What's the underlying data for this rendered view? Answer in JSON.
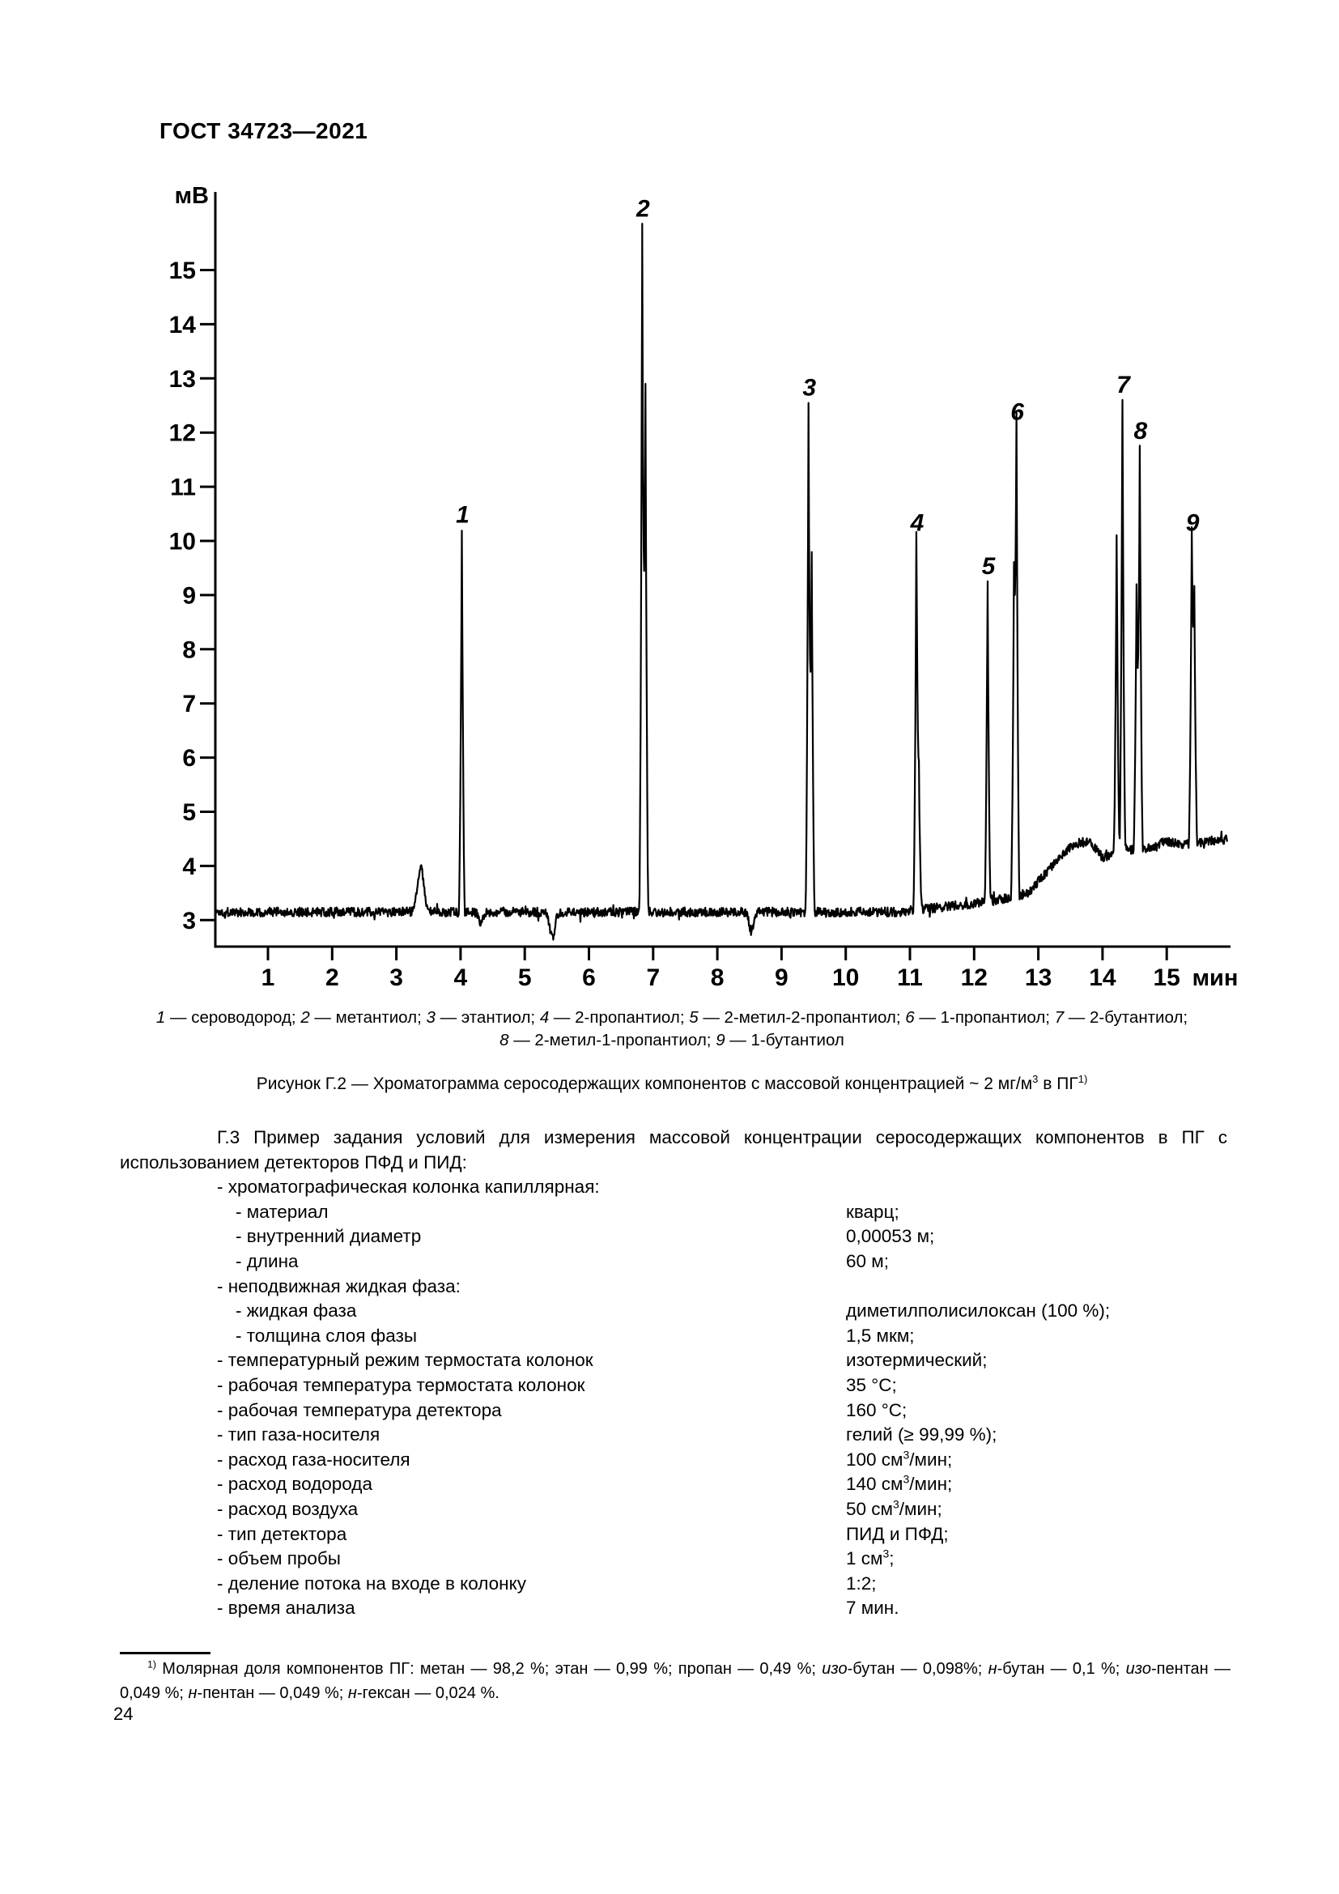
{
  "doc": {
    "header": "ГОСТ 34723—2021",
    "page_number": "24"
  },
  "figure_caption": {
    "line1_items": [
      {
        "num": "1",
        "name": "сероводород"
      },
      {
        "num": "2",
        "name": "метантиол"
      },
      {
        "num": "3",
        "name": "этантиол"
      },
      {
        "num": "4",
        "name": "2-пропантиол"
      },
      {
        "num": "5",
        "name": "2-метил-2-пропантиол"
      },
      {
        "num": "6",
        "name": "1-пропантиол"
      },
      {
        "num": "7",
        "name": "2-бутантиол"
      }
    ],
    "line2_items": [
      {
        "num": "8",
        "name": "2-метил-1-пропантиол"
      },
      {
        "num": "9",
        "name": "1-бутантиол"
      }
    ],
    "title_segments": [
      {
        "t": "Рисунок Г.2 — Хроматограмма серосодержащих компонентов с массовой концентрацией ~ 2 мг/м"
      },
      {
        "t": "3",
        "sup": true
      },
      {
        "t": " в ПГ"
      },
      {
        "t": "1)",
        "sup": true
      }
    ]
  },
  "conditions": {
    "intro": "Г.3 Пример задания условий для измерения массовой концентрации серосодержащих компонентов в ПГ с использованием детекторов ПФД и ПИД:",
    "items": [
      {
        "level": 1,
        "label": "- хроматографическая колонка капиллярная:",
        "value": []
      },
      {
        "level": 2,
        "label": "- материал",
        "value": [
          {
            "t": "кварц;"
          }
        ]
      },
      {
        "level": 2,
        "label": "- внутренний диаметр",
        "value": [
          {
            "t": "0,00053 м;"
          }
        ]
      },
      {
        "level": 2,
        "label": "- длина",
        "value": [
          {
            "t": "60 м;"
          }
        ]
      },
      {
        "level": 1,
        "label": "- неподвижная жидкая фаза:",
        "value": []
      },
      {
        "level": 2,
        "label": "- жидкая фаза",
        "value": [
          {
            "t": "диметилполисилоксан (100 %);"
          }
        ]
      },
      {
        "level": 2,
        "label": "- толщина слоя фазы",
        "value": [
          {
            "t": "1,5 мкм;"
          }
        ]
      },
      {
        "level": 1,
        "label": "- температурный режим термостата колонок",
        "value": [
          {
            "t": "изотермический;"
          }
        ]
      },
      {
        "level": 1,
        "label": "- рабочая температура термостата колонок",
        "value": [
          {
            "t": "35 °С;"
          }
        ]
      },
      {
        "level": 1,
        "label": "- рабочая температура детектора",
        "value": [
          {
            "t": "160 °С;"
          }
        ]
      },
      {
        "level": 1,
        "label": "- тип газа-носителя",
        "value": [
          {
            "t": "гелий (≥ 99,99 %);"
          }
        ]
      },
      {
        "level": 1,
        "label": "- расход газа-носителя",
        "value": [
          {
            "t": "100 см"
          },
          {
            "t": "3",
            "sup": true
          },
          {
            "t": "/мин;"
          }
        ]
      },
      {
        "level": 1,
        "label": "- расход водорода",
        "value": [
          {
            "t": "140 см"
          },
          {
            "t": "3",
            "sup": true
          },
          {
            "t": "/мин;"
          }
        ]
      },
      {
        "level": 1,
        "label": "- расход воздуха",
        "value": [
          {
            "t": "50 см"
          },
          {
            "t": "3",
            "sup": true
          },
          {
            "t": "/мин;"
          }
        ]
      },
      {
        "level": 1,
        "label": "- тип детектора",
        "value": [
          {
            "t": "ПИД и ПФД;"
          }
        ]
      },
      {
        "level": 1,
        "label": "- объем пробы",
        "value": [
          {
            "t": "1 см"
          },
          {
            "t": "3",
            "sup": true
          },
          {
            "t": ";"
          }
        ]
      },
      {
        "level": 1,
        "label": "- деление потока на входе в колонку",
        "value": [
          {
            "t": "1:2;"
          }
        ]
      },
      {
        "level": 1,
        "label": "- время анализа",
        "value": [
          {
            "t": "7 мин."
          }
        ]
      }
    ]
  },
  "footnote": {
    "segments": [
      {
        "t": "1)",
        "sup": true
      },
      {
        "t": " Молярная доля компонентов ПГ: метан — 98,2 %; этан — 0,99 %; пропан — 0,49 %; "
      },
      {
        "t": "изо",
        "i": true
      },
      {
        "t": "-бутан — 0,098%; "
      },
      {
        "t": "н",
        "i": true
      },
      {
        "t": "-бутан — 0,1 %; "
      },
      {
        "t": "изо",
        "i": true
      },
      {
        "t": "-пентан — 0,049 %; "
      },
      {
        "t": "н",
        "i": true
      },
      {
        "t": "-пентан — 0,049 %; "
      },
      {
        "t": "н",
        "i": true
      },
      {
        "t": "-гексан — 0,024 %."
      }
    ]
  },
  "chart_data": {
    "type": "line",
    "title": "Хроматограмма серосодержащих компонентов",
    "y_axis": {
      "unit": "мВ",
      "min": 3,
      "max": 15,
      "step": 1
    },
    "x_axis": {
      "unit": "мин",
      "min": 1,
      "max": 15,
      "step": 1
    },
    "grid": false,
    "line_color": "#000000",
    "trace_range": [
      0.18,
      15.95
    ],
    "noise_mV": 0.085,
    "peaks": [
      {
        "label": "1",
        "name": "сероводород",
        "t": 4.02,
        "apex_mV": 10.2
      },
      {
        "label": "2",
        "name": "метантиол",
        "t": 6.83,
        "apex_mV": 15.85
      },
      {
        "label": "3",
        "name": "этантиол",
        "t": 9.42,
        "apex_mV": 12.55
      },
      {
        "label": "4",
        "name": "2-пропантиол",
        "t": 11.1,
        "apex_mV": 10.05
      },
      {
        "label": "5",
        "name": "2-метил-2-пропантиол",
        "t": 12.21,
        "apex_mV": 9.25
      },
      {
        "label": "6",
        "name": "1-пропантиол",
        "t": 12.66,
        "apex_mV": 12.1
      },
      {
        "label": "7",
        "name": "2-бутантиол",
        "t": 14.31,
        "apex_mV": 12.6
      },
      {
        "label": "8",
        "name": "2-метил-1-пропантиол",
        "t": 14.58,
        "apex_mV": 11.75
      },
      {
        "label": "9",
        "name": "1-бутантиол",
        "t": 15.39,
        "apex_mV": 10.05
      }
    ],
    "secondary_peaks": [
      {
        "t": 6.88,
        "apex_mV": 12.9
      },
      {
        "t": 9.47,
        "apex_mV": 9.8
      },
      {
        "t": 11.14,
        "apex_mV": 5.6
      },
      {
        "t": 12.62,
        "apex_mV": 9.2
      },
      {
        "t": 14.22,
        "apex_mV": 10.1
      },
      {
        "t": 14.53,
        "apex_mV": 9.2
      },
      {
        "t": 15.43,
        "apex_mV": 8.9
      }
    ],
    "features": [
      {
        "type": "bump",
        "t": 3.38,
        "amp": 0.8,
        "w": 0.07
      },
      {
        "type": "dip",
        "t": 4.32,
        "amp": -0.2,
        "w": 0.05
      },
      {
        "type": "dip",
        "t": 5.43,
        "amp": -0.45,
        "w": 0.06
      },
      {
        "type": "dip",
        "t": 8.53,
        "amp": -0.35,
        "w": 0.05
      }
    ],
    "baseline_anchors": [
      [
        0.18,
        3.15
      ],
      [
        10.8,
        3.15
      ],
      [
        11.5,
        3.24
      ],
      [
        12.3,
        3.35
      ],
      [
        12.85,
        3.5
      ],
      [
        13.1,
        3.85
      ],
      [
        13.35,
        4.2
      ],
      [
        13.6,
        4.42
      ],
      [
        13.8,
        4.45
      ],
      [
        14.0,
        4.15
      ],
      [
        14.15,
        4.22
      ],
      [
        14.45,
        4.3
      ],
      [
        14.75,
        4.35
      ],
      [
        15.0,
        4.45
      ],
      [
        15.25,
        4.38
      ],
      [
        15.6,
        4.45
      ],
      [
        15.95,
        4.5
      ]
    ]
  }
}
